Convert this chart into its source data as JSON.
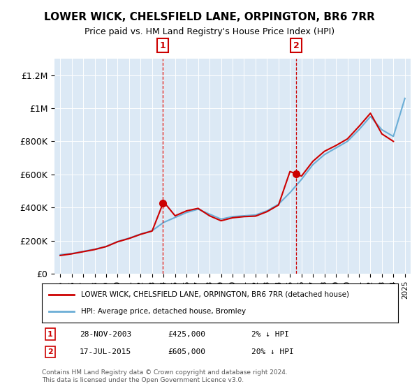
{
  "title": "LOWER WICK, CHELSFIELD LANE, ORPINGTON, BR6 7RR",
  "subtitle": "Price paid vs. HM Land Registry's House Price Index (HPI)",
  "xlabel": "",
  "ylabel": "",
  "ylim": [
    0,
    1300000
  ],
  "yticks": [
    0,
    200000,
    400000,
    600000,
    800000,
    1000000,
    1200000
  ],
  "ytick_labels": [
    "£0",
    "£200K",
    "£400K",
    "£600K",
    "£800K",
    "£1M",
    "£1.2M"
  ],
  "background_color": "#ffffff",
  "plot_bg_color": "#dce9f5",
  "legend_entry1": "LOWER WICK, CHELSFIELD LANE, ORPINGTON, BR6 7RR (detached house)",
  "legend_entry2": "HPI: Average price, detached house, Bromley",
  "sale1_label": "1",
  "sale1_date": "28-NOV-2003",
  "sale1_price": "£425,000",
  "sale1_hpi": "2% ↓ HPI",
  "sale2_label": "2",
  "sale2_date": "17-JUL-2015",
  "sale2_price": "£605,000",
  "sale2_hpi": "20% ↓ HPI",
  "footer": "Contains HM Land Registry data © Crown copyright and database right 2024.\nThis data is licensed under the Open Government Licence v3.0.",
  "hpi_color": "#6baed6",
  "price_color": "#cc0000",
  "marker_color": "#cc0000",
  "vline_color": "#cc0000",
  "sale1_year": 2003.91,
  "sale2_year": 2015.54,
  "sale1_price_val": 425000,
  "sale2_price_val": 605000,
  "hpi_years": [
    1995,
    1996,
    1997,
    1998,
    1999,
    2000,
    2001,
    2002,
    2003,
    2004,
    2005,
    2006,
    2007,
    2008,
    2009,
    2010,
    2011,
    2012,
    2013,
    2014,
    2015,
    2016,
    2017,
    2018,
    2019,
    2020,
    2021,
    2022,
    2023,
    2024,
    2025
  ],
  "hpi_values": [
    115000,
    122000,
    135000,
    148000,
    165000,
    195000,
    215000,
    240000,
    260000,
    310000,
    340000,
    370000,
    390000,
    360000,
    330000,
    345000,
    350000,
    355000,
    380000,
    420000,
    490000,
    570000,
    660000,
    720000,
    760000,
    800000,
    870000,
    950000,
    870000,
    830000,
    1060000
  ],
  "price_years": [
    1995,
    1996,
    1997,
    1998,
    1999,
    2000,
    2001,
    2002,
    2003,
    2004,
    2005,
    2006,
    2007,
    2008,
    2009,
    2010,
    2011,
    2012,
    2013,
    2014,
    2015,
    2016,
    2017,
    2018,
    2019,
    2020,
    2021,
    2022,
    2023,
    2024
  ],
  "price_values": [
    110000,
    120000,
    133000,
    146000,
    164000,
    193000,
    213000,
    238000,
    258000,
    435000,
    350000,
    380000,
    395000,
    350000,
    320000,
    338000,
    345000,
    348000,
    375000,
    415000,
    618000,
    590000,
    680000,
    740000,
    775000,
    815000,
    890000,
    970000,
    845000,
    800000
  ]
}
